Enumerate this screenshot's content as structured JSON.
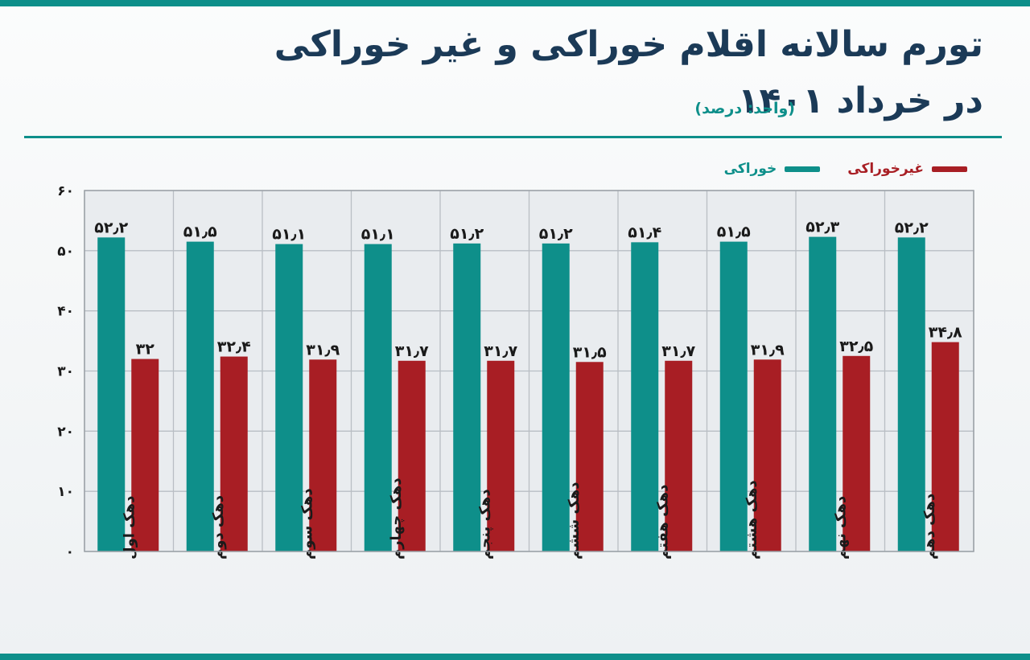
{
  "title": {
    "line1": "تورم سالانه اقلام خوراکی و غیر خوراکی",
    "line2": "در خرداد ۱۴۰۱",
    "unit": "(واحد: درصد)"
  },
  "colors": {
    "food": "#0e8f8a",
    "nonfood": "#a81e24",
    "accent": "#0e8f8a",
    "title": "#1b3a57"
  },
  "chart_data": {
    "type": "bar",
    "title": "تورم سالانه اقلام خوراکی و غیر خوراکی در خرداد ۱۴۰۱",
    "unit": "(واحد: درصد)",
    "categories": [
      "دهک اول",
      "دهک دوم",
      "دهک سوم",
      "دهک چهارم",
      "دهک پنجم",
      "دهک ششم",
      "دهک هفتم",
      "دهک هشتم",
      "دهک نهم",
      "دهک دهم"
    ],
    "series": [
      {
        "name": "خوراکی",
        "color": "#0e8f8a",
        "values": [
          52.2,
          51.5,
          51.1,
          51.1,
          51.2,
          51.2,
          51.4,
          51.5,
          52.3,
          52.2
        ],
        "labels": [
          "۵۲٫۲",
          "۵۱٫۵",
          "۵۱٫۱",
          "۵۱٫۱",
          "۵۱٫۲",
          "۵۱٫۲",
          "۵۱٫۴",
          "۵۱٫۵",
          "۵۲٫۳",
          "۵۲٫۲"
        ]
      },
      {
        "name": "غیرخوراکی",
        "color": "#a81e24",
        "values": [
          32,
          32.4,
          31.9,
          31.7,
          31.7,
          31.5,
          31.7,
          31.9,
          32.5,
          34.8
        ],
        "labels": [
          "۳۲",
          "۳۲٫۴",
          "۳۱٫۹",
          "۳۱٫۷",
          "۳۱٫۷",
          "۳۱٫۵",
          "۳۱٫۷",
          "۳۱٫۹",
          "۳۲٫۵",
          "۳۴٫۸"
        ]
      }
    ],
    "ylim": [
      0,
      60
    ],
    "yticks": [
      0,
      10,
      20,
      30,
      40,
      50,
      60
    ],
    "ytick_labels": [
      "۰",
      "۱۰",
      "۲۰",
      "۳۰",
      "۴۰",
      "۵۰",
      "۶۰"
    ],
    "grid": true,
    "legend_position": "top-right",
    "xlabel": "",
    "ylabel": ""
  }
}
